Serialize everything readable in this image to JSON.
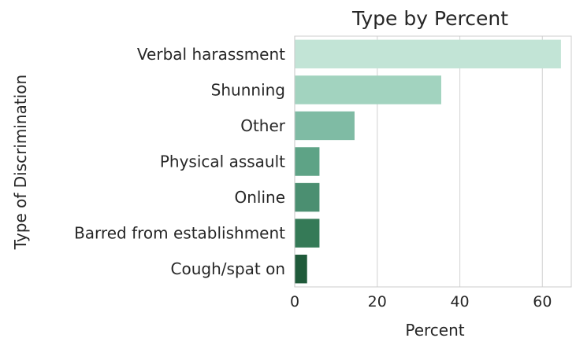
{
  "chart_data": {
    "type": "bar",
    "orientation": "horizontal",
    "title": "Type by Percent",
    "xlabel": "Percent",
    "ylabel": "Type of Discrimination",
    "categories": [
      "Verbal harassment",
      "Shunning",
      "Other",
      "Physical assault",
      "Online",
      "Barred from establishment",
      "Cough/spat on"
    ],
    "values": [
      64.5,
      35.5,
      14.5,
      6,
      6,
      6,
      3
    ],
    "colors": [
      "#c2e4d6",
      "#a2d3bf",
      "#7fbba4",
      "#5ea386",
      "#4b8f71",
      "#357a57",
      "#1f5a3a"
    ],
    "xlim": [
      0,
      67
    ],
    "xticks": [
      0,
      20,
      40,
      60
    ],
    "grid": "vertical",
    "legend": "none"
  }
}
